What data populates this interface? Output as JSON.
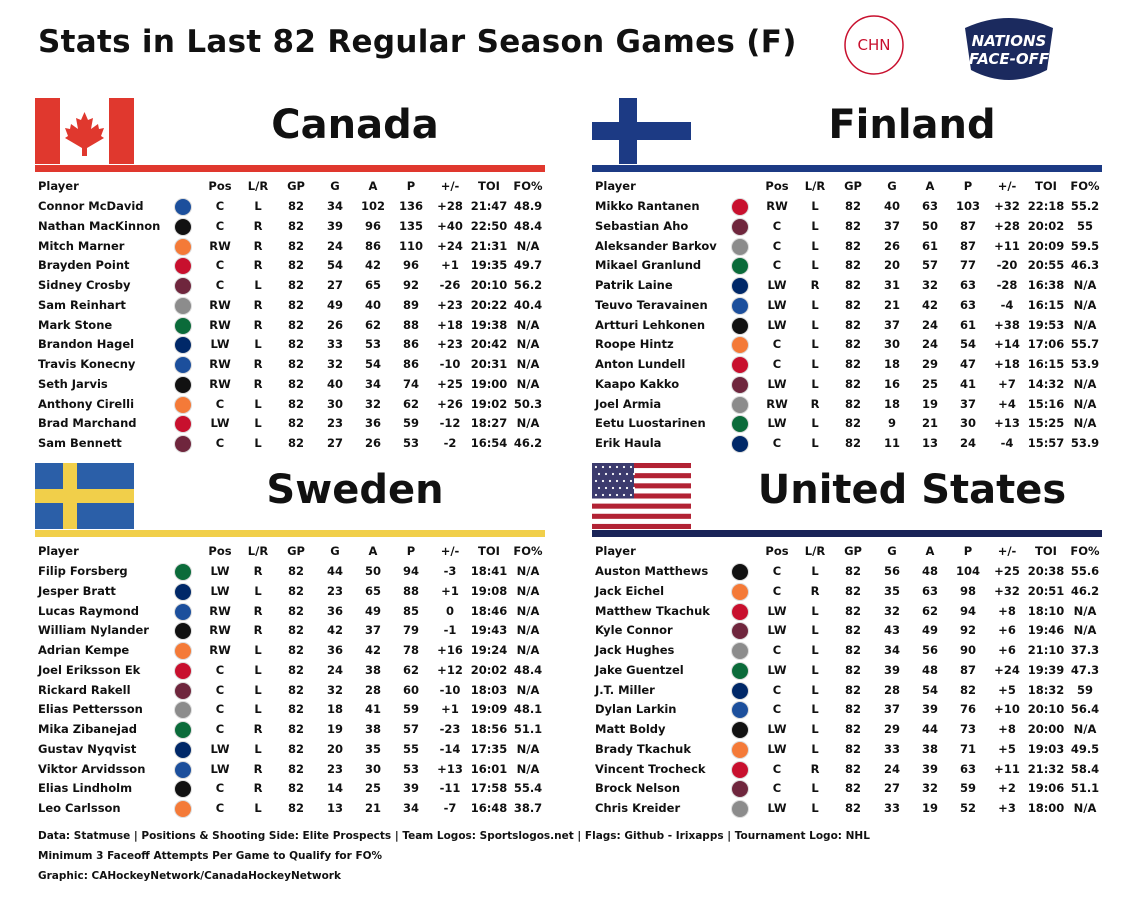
{
  "header": {
    "title": "Stats in Last 82 Regular Season Games (F)"
  },
  "logos": {
    "chn_text": "CHN",
    "event_lines": [
      "NATIONS",
      "FACE-OFF"
    ]
  },
  "columns": [
    "Player",
    "Pos",
    "L/R",
    "GP",
    "G",
    "A",
    "P",
    "+/-",
    "TOI",
    "FO%"
  ],
  "panels": [
    {
      "country": "Canada",
      "rows": [
        [
          "Connor McDavid",
          "C",
          "L",
          82,
          34,
          102,
          136,
          "+28",
          "21:47",
          48.9
        ],
        [
          "Nathan MacKinnon",
          "C",
          "R",
          82,
          39,
          96,
          135,
          "+40",
          "22:50",
          48.4
        ],
        [
          "Mitch Marner",
          "RW",
          "R",
          82,
          24,
          86,
          110,
          "+24",
          "21:31",
          "N/A"
        ],
        [
          "Brayden Point",
          "C",
          "R",
          82,
          54,
          42,
          96,
          "+1",
          "19:35",
          49.7
        ],
        [
          "Sidney Crosby",
          "C",
          "L",
          82,
          27,
          65,
          92,
          "-26",
          "20:10",
          56.2
        ],
        [
          "Sam Reinhart",
          "RW",
          "R",
          82,
          49,
          40,
          89,
          "+23",
          "20:22",
          40.4
        ],
        [
          "Mark Stone",
          "RW",
          "R",
          82,
          26,
          62,
          88,
          "+18",
          "19:38",
          "N/A"
        ],
        [
          "Brandon Hagel",
          "LW",
          "L",
          82,
          33,
          53,
          86,
          "+23",
          "20:42",
          "N/A"
        ],
        [
          "Travis Konecny",
          "RW",
          "R",
          82,
          32,
          54,
          86,
          "-10",
          "20:31",
          "N/A"
        ],
        [
          "Seth Jarvis",
          "RW",
          "R",
          82,
          40,
          34,
          74,
          "+25",
          "19:00",
          "N/A"
        ],
        [
          "Anthony Cirelli",
          "C",
          "L",
          82,
          30,
          32,
          62,
          "+26",
          "19:02",
          50.3
        ],
        [
          "Brad Marchand",
          "LW",
          "L",
          82,
          23,
          36,
          59,
          "-12",
          "18:27",
          "N/A"
        ],
        [
          "Sam Bennett",
          "C",
          "L",
          82,
          27,
          26,
          53,
          "-2",
          "16:54",
          46.2
        ]
      ]
    },
    {
      "country": "Finland",
      "rows": [
        [
          "Mikko Rantanen",
          "RW",
          "L",
          82,
          40,
          63,
          103,
          "+32",
          "22:18",
          55.2
        ],
        [
          "Sebastian Aho",
          "C",
          "L",
          82,
          37,
          50,
          87,
          "+28",
          "20:02",
          55
        ],
        [
          "Aleksander Barkov",
          "C",
          "L",
          82,
          26,
          61,
          87,
          "+11",
          "20:09",
          59.5
        ],
        [
          "Mikael Granlund",
          "C",
          "L",
          82,
          20,
          57,
          77,
          "-20",
          "20:55",
          46.3
        ],
        [
          "Patrik Laine",
          "LW",
          "R",
          82,
          31,
          32,
          63,
          "-28",
          "16:38",
          "N/A"
        ],
        [
          "Teuvo Teravainen",
          "LW",
          "L",
          82,
          21,
          42,
          63,
          "-4",
          "16:15",
          "N/A"
        ],
        [
          "Artturi Lehkonen",
          "LW",
          "L",
          82,
          37,
          24,
          61,
          "+38",
          "19:53",
          "N/A"
        ],
        [
          "Roope Hintz",
          "C",
          "L",
          82,
          30,
          24,
          54,
          "+14",
          "17:06",
          55.7
        ],
        [
          "Anton Lundell",
          "C",
          "L",
          82,
          18,
          29,
          47,
          "+18",
          "16:15",
          53.9
        ],
        [
          "Kaapo Kakko",
          "LW",
          "L",
          82,
          16,
          25,
          41,
          "+7",
          "14:32",
          "N/A"
        ],
        [
          "Joel Armia",
          "RW",
          "R",
          82,
          18,
          19,
          37,
          "+4",
          "15:16",
          "N/A"
        ],
        [
          "Eetu Luostarinen",
          "LW",
          "L",
          82,
          9,
          21,
          30,
          "+13",
          "15:25",
          "N/A"
        ],
        [
          "Erik Haula",
          "C",
          "L",
          82,
          11,
          13,
          24,
          "-4",
          "15:57",
          53.9
        ]
      ]
    },
    {
      "country": "Sweden",
      "rows": [
        [
          "Filip Forsberg",
          "LW",
          "R",
          82,
          44,
          50,
          94,
          "-3",
          "18:41",
          "N/A"
        ],
        [
          "Jesper Bratt",
          "LW",
          "L",
          82,
          23,
          65,
          88,
          "+1",
          "19:08",
          "N/A"
        ],
        [
          "Lucas Raymond",
          "RW",
          "R",
          82,
          36,
          49,
          85,
          "0",
          "18:46",
          "N/A"
        ],
        [
          "William Nylander",
          "RW",
          "R",
          82,
          42,
          37,
          79,
          "-1",
          "19:43",
          "N/A"
        ],
        [
          "Adrian Kempe",
          "RW",
          "L",
          82,
          36,
          42,
          78,
          "+16",
          "19:24",
          "N/A"
        ],
        [
          "Joel Eriksson Ek",
          "C",
          "L",
          82,
          24,
          38,
          62,
          "+12",
          "20:02",
          48.4
        ],
        [
          "Rickard Rakell",
          "C",
          "L",
          82,
          32,
          28,
          60,
          "-10",
          "18:03",
          "N/A"
        ],
        [
          "Elias Pettersson",
          "C",
          "L",
          82,
          18,
          41,
          59,
          "+1",
          "19:09",
          48.1
        ],
        [
          "Mika Zibanejad",
          "C",
          "R",
          82,
          19,
          38,
          57,
          "-23",
          "18:56",
          51.1
        ],
        [
          "Gustav Nyqvist",
          "LW",
          "L",
          82,
          20,
          35,
          55,
          "-14",
          "17:35",
          "N/A"
        ],
        [
          "Viktor Arvidsson",
          "LW",
          "R",
          82,
          23,
          30,
          53,
          "+13",
          "16:01",
          "N/A"
        ],
        [
          "Elias Lindholm",
          "C",
          "R",
          82,
          14,
          25,
          39,
          "-11",
          "17:58",
          55.4
        ],
        [
          "Leo Carlsson",
          "C",
          "L",
          82,
          13,
          21,
          34,
          "-7",
          "16:48",
          38.7
        ]
      ]
    },
    {
      "country": "United States",
      "rows": [
        [
          "Auston Matthews",
          "C",
          "L",
          82,
          56,
          48,
          104,
          "+25",
          "20:38",
          55.6
        ],
        [
          "Jack Eichel",
          "C",
          "R",
          82,
          35,
          63,
          98,
          "+32",
          "20:51",
          46.2
        ],
        [
          "Matthew Tkachuk",
          "LW",
          "L",
          82,
          32,
          62,
          94,
          "+8",
          "18:10",
          "N/A"
        ],
        [
          "Kyle Connor",
          "LW",
          "L",
          82,
          43,
          49,
          92,
          "+6",
          "19:46",
          "N/A"
        ],
        [
          "Jack Hughes",
          "C",
          "L",
          82,
          34,
          56,
          90,
          "+6",
          "21:10",
          37.3
        ],
        [
          "Jake Guentzel",
          "LW",
          "L",
          82,
          39,
          48,
          87,
          "+24",
          "19:39",
          47.3
        ],
        [
          "J.T. Miller",
          "C",
          "L",
          82,
          28,
          54,
          82,
          "+5",
          "18:32",
          59
        ],
        [
          "Dylan Larkin",
          "C",
          "L",
          82,
          37,
          39,
          76,
          "+10",
          "20:10",
          56.4
        ],
        [
          "Matt Boldy",
          "LW",
          "L",
          82,
          29,
          44,
          73,
          "+8",
          "20:00",
          "N/A"
        ],
        [
          "Brady Tkachuk",
          "LW",
          "L",
          82,
          33,
          38,
          71,
          "+5",
          "19:03",
          49.5
        ],
        [
          "Vincent Trocheck",
          "C",
          "R",
          82,
          24,
          39,
          63,
          "+11",
          "21:32",
          58.4
        ],
        [
          "Brock Nelson",
          "C",
          "L",
          82,
          27,
          32,
          59,
          "+2",
          "19:06",
          51.1
        ],
        [
          "Chris Kreider",
          "LW",
          "L",
          82,
          33,
          19,
          52,
          "+3",
          "18:00",
          "N/A"
        ]
      ]
    }
  ],
  "footer": [
    "Data: Statmuse | Positions & Shooting Side: Elite Prospects | Team Logos: Sportslogos.net | Flags: Github - Irixapps | Tournament Logo: NHL",
    "Minimum 3 Faceoff Attempts Per Game to Qualify for FO%",
    "Graphic: CAHockeyNetwork/CanadaHockeyNetwork"
  ]
}
